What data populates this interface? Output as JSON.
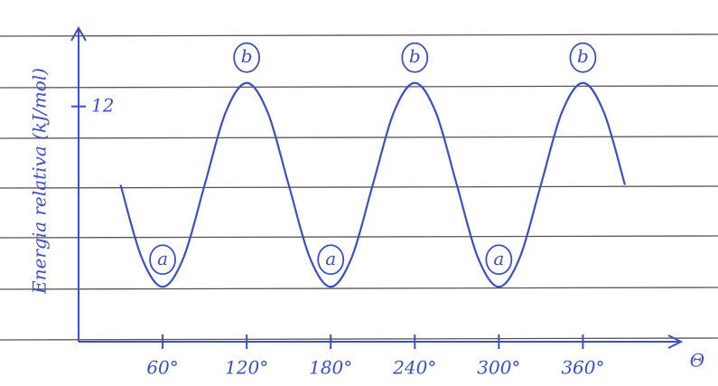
{
  "chart_data": {
    "type": "line",
    "y_label": "Energia relativa (kJ/mol)",
    "x_label": "Θ",
    "x": [
      30,
      45,
      60,
      75,
      90,
      105,
      120,
      135,
      150,
      165,
      180,
      195,
      210,
      225,
      240,
      255,
      270,
      285,
      300,
      315,
      330,
      345,
      360,
      375,
      390
    ],
    "series": [
      {
        "color": "#3b4fc4",
        "values": [
          8.0,
          4.3,
          2.8,
          4.3,
          8.0,
          11.7,
          13.2,
          11.7,
          8.0,
          4.3,
          2.8,
          4.3,
          8.0,
          11.7,
          13.2,
          11.7,
          8.0,
          4.3,
          2.8,
          4.3,
          8.0,
          11.7,
          13.2,
          11.7,
          8.0
        ]
      }
    ],
    "xlim": [
      0,
      430
    ],
    "ylim": [
      0,
      16
    ],
    "xticks": [
      {
        "value": 60,
        "label": "60°"
      },
      {
        "value": 120,
        "label": "120°"
      },
      {
        "value": 180,
        "label": "180°"
      },
      {
        "value": 240,
        "label": "240°"
      },
      {
        "value": 300,
        "label": "300°"
      },
      {
        "value": 360,
        "label": "360°"
      }
    ],
    "yticks": [
      12
    ],
    "annotations": [
      {
        "text": "a",
        "x": 60
      },
      {
        "text": "b",
        "x": 120
      },
      {
        "text": "a",
        "x": 180
      },
      {
        "text": "b",
        "x": 240
      },
      {
        "text": "a",
        "x": 300
      },
      {
        "text": "b",
        "x": 360
      }
    ]
  }
}
